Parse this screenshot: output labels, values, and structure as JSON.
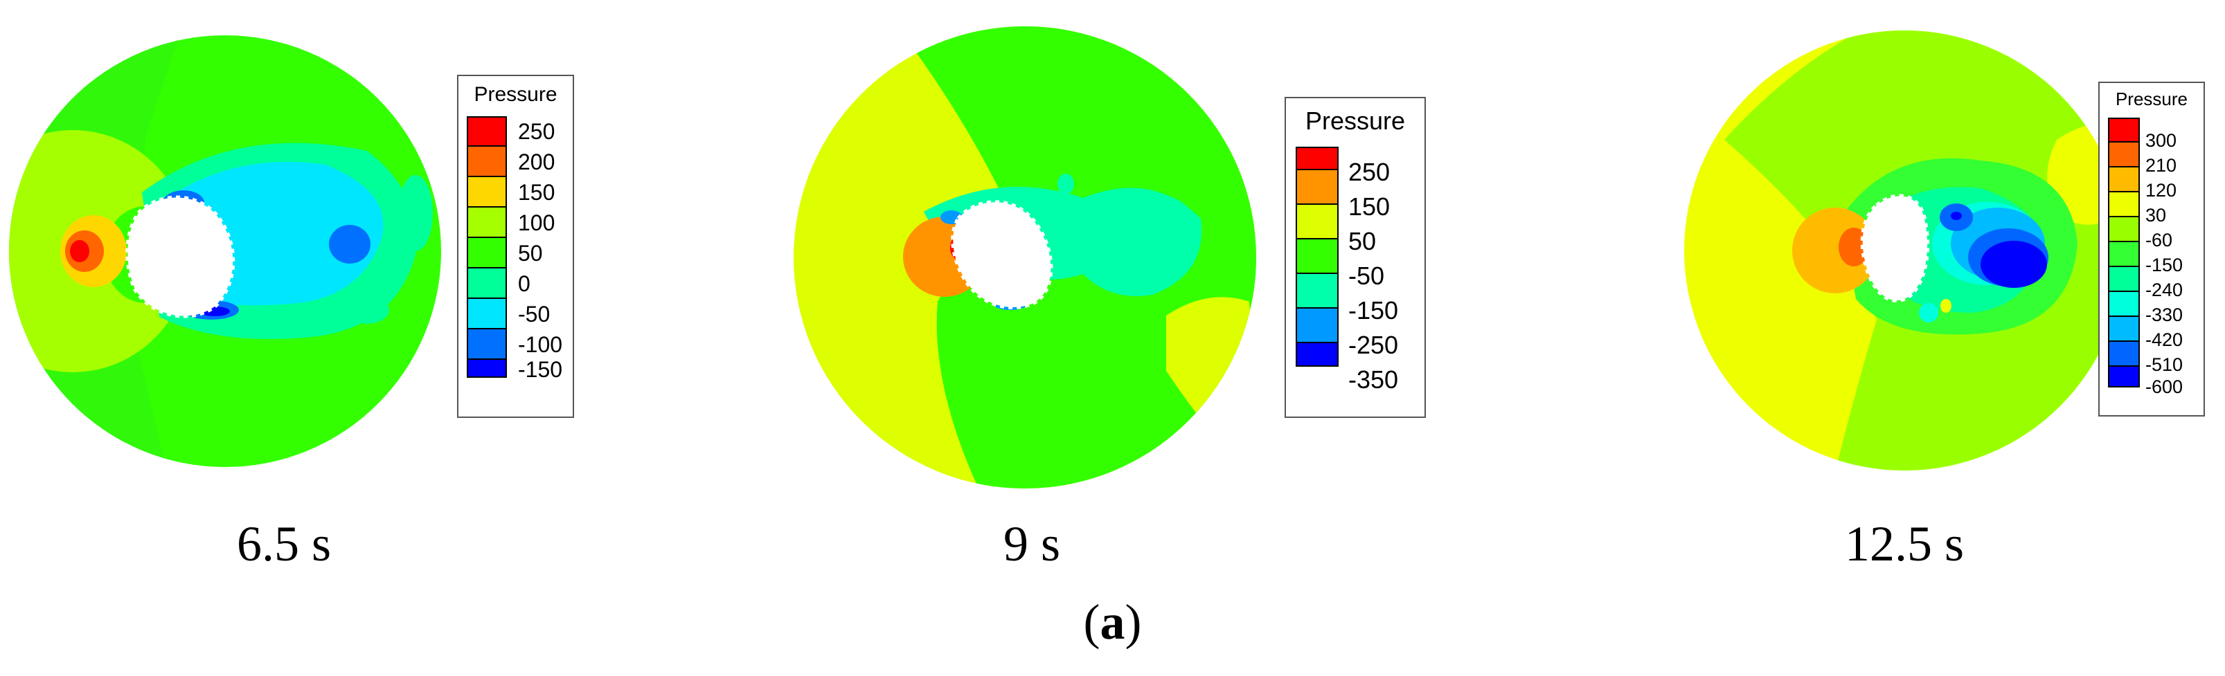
{
  "figure": {
    "sub_label": {
      "open": "(",
      "letter": "a",
      "close": ")"
    },
    "panels": [
      {
        "time_label": "6.5 s",
        "legend": {
          "title": "Pressure",
          "levels": [
            {
              "label": "250",
              "color": "#ff0000"
            },
            {
              "label": "200",
              "color": "#ff6600"
            },
            {
              "label": "150",
              "color": "#ffd700"
            },
            {
              "label": "100",
              "color": "#a6ff00"
            },
            {
              "label": "50",
              "color": "#33ff00"
            },
            {
              "label": "0",
              "color": "#00ff99"
            },
            {
              "label": "-50",
              "color": "#00e6ff"
            },
            {
              "label": "-100",
              "color": "#0070ff"
            },
            {
              "label": "-150",
              "color": "#0000ff"
            }
          ]
        }
      },
      {
        "time_label": "9 s",
        "legend": {
          "title": "Pressure",
          "levels": [
            {
              "label": "250",
              "color": "#ff0000"
            },
            {
              "label": "150",
              "color": "#ff9400"
            },
            {
              "label": "50",
              "color": "#ddff00"
            },
            {
              "label": "-50",
              "color": "#33ff00"
            },
            {
              "label": "-150",
              "color": "#00ffaa"
            },
            {
              "label": "-250",
              "color": "#0099ff"
            },
            {
              "label": "-350",
              "color": "#0000ff"
            }
          ]
        }
      },
      {
        "time_label": "12.5 s",
        "legend": {
          "title": "Pressure",
          "levels": [
            {
              "label": "300",
              "color": "#ff0000"
            },
            {
              "label": "210",
              "color": "#ff6600"
            },
            {
              "label": "120",
              "color": "#ffbb00"
            },
            {
              "label": "30",
              "color": "#eeff00"
            },
            {
              "label": "-60",
              "color": "#99ff00"
            },
            {
              "label": "-150",
              "color": "#33ff33"
            },
            {
              "label": "-240",
              "color": "#00ff99"
            },
            {
              "label": "-330",
              "color": "#00ffdd"
            },
            {
              "label": "-420",
              "color": "#00bbff"
            },
            {
              "label": "-510",
              "color": "#0066ff"
            },
            {
              "label": "-600",
              "color": "#0000ff"
            }
          ]
        }
      }
    ]
  }
}
